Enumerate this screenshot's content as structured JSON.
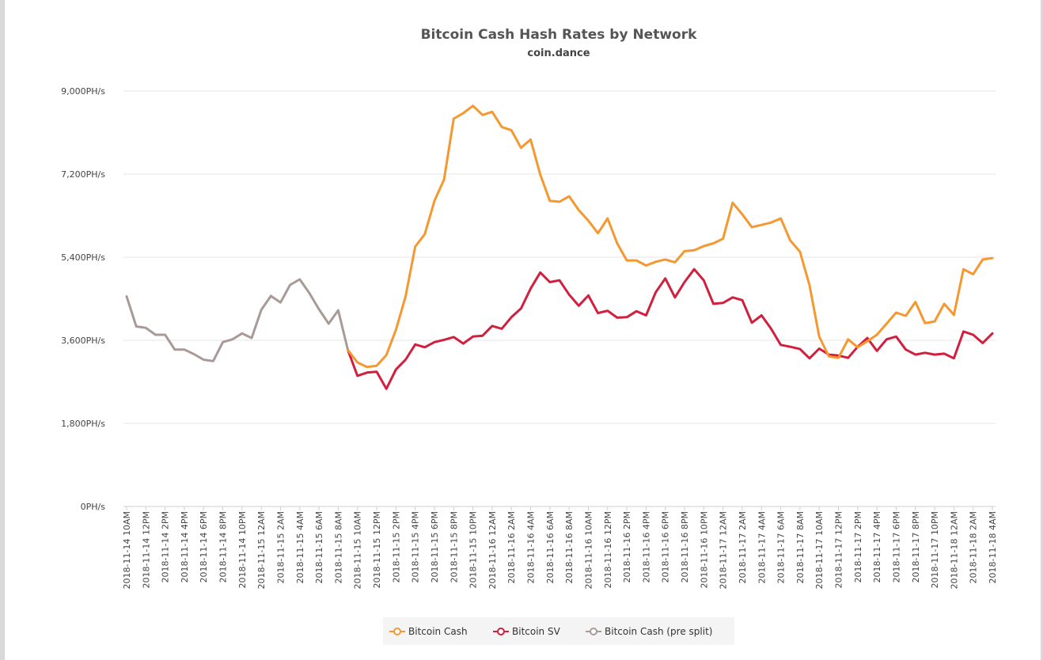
{
  "chart_data": {
    "type": "line",
    "title": "Bitcoin Cash Hash Rates by Network",
    "subtitle": "coin.dance",
    "ylim": [
      0,
      9000
    ],
    "yticks": [
      "0PH/s",
      "1,800PH/s",
      "3,600PH/s",
      "5,400PH/s",
      "7,200PH/s",
      "9,000PH/s"
    ],
    "ytick_values": [
      0,
      1800,
      3600,
      5400,
      7200,
      9000
    ],
    "x_labels": [
      "2018-11-14 10AM",
      "2018-11-14 12PM",
      "2018-11-14 2PM",
      "2018-11-14 4PM",
      "2018-11-14 6PM",
      "2018-11-14 8PM",
      "2018-11-14 10PM",
      "2018-11-15 12AM",
      "2018-11-15 2AM",
      "2018-11-15 4AM",
      "2018-11-15 6AM",
      "2018-11-15 8AM",
      "2018-11-15 10AM",
      "2018-11-15 12PM",
      "2018-11-15 2PM",
      "2018-11-15 4PM",
      "2018-11-15 6PM",
      "2018-11-15 8PM",
      "2018-11-15 10PM",
      "2018-11-16 12AM",
      "2018-11-16 2AM",
      "2018-11-16 4AM",
      "2018-11-16 6AM",
      "2018-11-16 8AM",
      "2018-11-16 10AM",
      "2018-11-16 12PM",
      "2018-11-16 2PM",
      "2018-11-16 4PM",
      "2018-11-16 6PM",
      "2018-11-16 8PM",
      "2018-11-16 10PM",
      "2018-11-17 12AM",
      "2018-11-17 2AM",
      "2018-11-17 4AM",
      "2018-11-17 6AM",
      "2018-11-17 8AM",
      "2018-11-17 10AM",
      "2018-11-17 12PM",
      "2018-11-17 2PM",
      "2018-11-17 4PM",
      "2018-11-17 6PM",
      "2018-11-17 8PM",
      "2018-11-17 10PM",
      "2018-11-18 12AM",
      "2018-11-18 2AM",
      "2018-11-18 4AM"
    ],
    "x_point_count": 91,
    "series": [
      {
        "name": "Bitcoin Cash (pre split)",
        "color": "#a99a98",
        "start_index": 0,
        "values": [
          4550,
          3900,
          3870,
          3720,
          3720,
          3400,
          3400,
          3300,
          3180,
          3150,
          3560,
          3620,
          3750,
          3650,
          4260,
          4560,
          4420,
          4800,
          4920,
          4620,
          4270,
          3960,
          4250,
          3390
        ]
      },
      {
        "name": "Bitcoin Cash",
        "color": "#f4982f",
        "start_index": 23,
        "values": [
          3390,
          3120,
          3020,
          3050,
          3280,
          3830,
          4550,
          5630,
          5900,
          6620,
          7080,
          8400,
          8520,
          8680,
          8480,
          8550,
          8220,
          8150,
          7770,
          7950,
          7190,
          6620,
          6600,
          6720,
          6420,
          6190,
          5920,
          6240,
          5700,
          5330,
          5330,
          5220,
          5300,
          5350,
          5290,
          5530,
          5550,
          5640,
          5700,
          5800,
          6580,
          6330,
          6050,
          6100,
          6150,
          6240,
          5760,
          5520,
          4790,
          3680,
          3250,
          3220,
          3620,
          3450,
          3580,
          3720,
          3960,
          4200,
          4130,
          4430,
          3970,
          4010,
          4390,
          4150,
          5140,
          5030,
          5350,
          5380
        ]
      },
      {
        "name": "Bitcoin SV",
        "color": "#d11f3e",
        "start_index": 23,
        "values": [
          3390,
          2830,
          2900,
          2920,
          2550,
          2970,
          3180,
          3510,
          3450,
          3560,
          3610,
          3670,
          3530,
          3680,
          3700,
          3910,
          3850,
          4100,
          4290,
          4720,
          5070,
          4860,
          4900,
          4590,
          4350,
          4570,
          4190,
          4240,
          4090,
          4100,
          4230,
          4140,
          4640,
          4940,
          4530,
          4860,
          5140,
          4900,
          4390,
          4410,
          4530,
          4470,
          3980,
          4140,
          3850,
          3500,
          3460,
          3410,
          3210,
          3420,
          3290,
          3270,
          3220,
          3460,
          3650,
          3370,
          3620,
          3680,
          3400,
          3290,
          3330,
          3290,
          3310,
          3210,
          3790,
          3720,
          3540,
          3750
        ]
      }
    ],
    "legend": [
      "Bitcoin Cash",
      "Bitcoin SV",
      "Bitcoin Cash (pre split)"
    ],
    "legend_position": "bottom-center",
    "grid": true
  }
}
